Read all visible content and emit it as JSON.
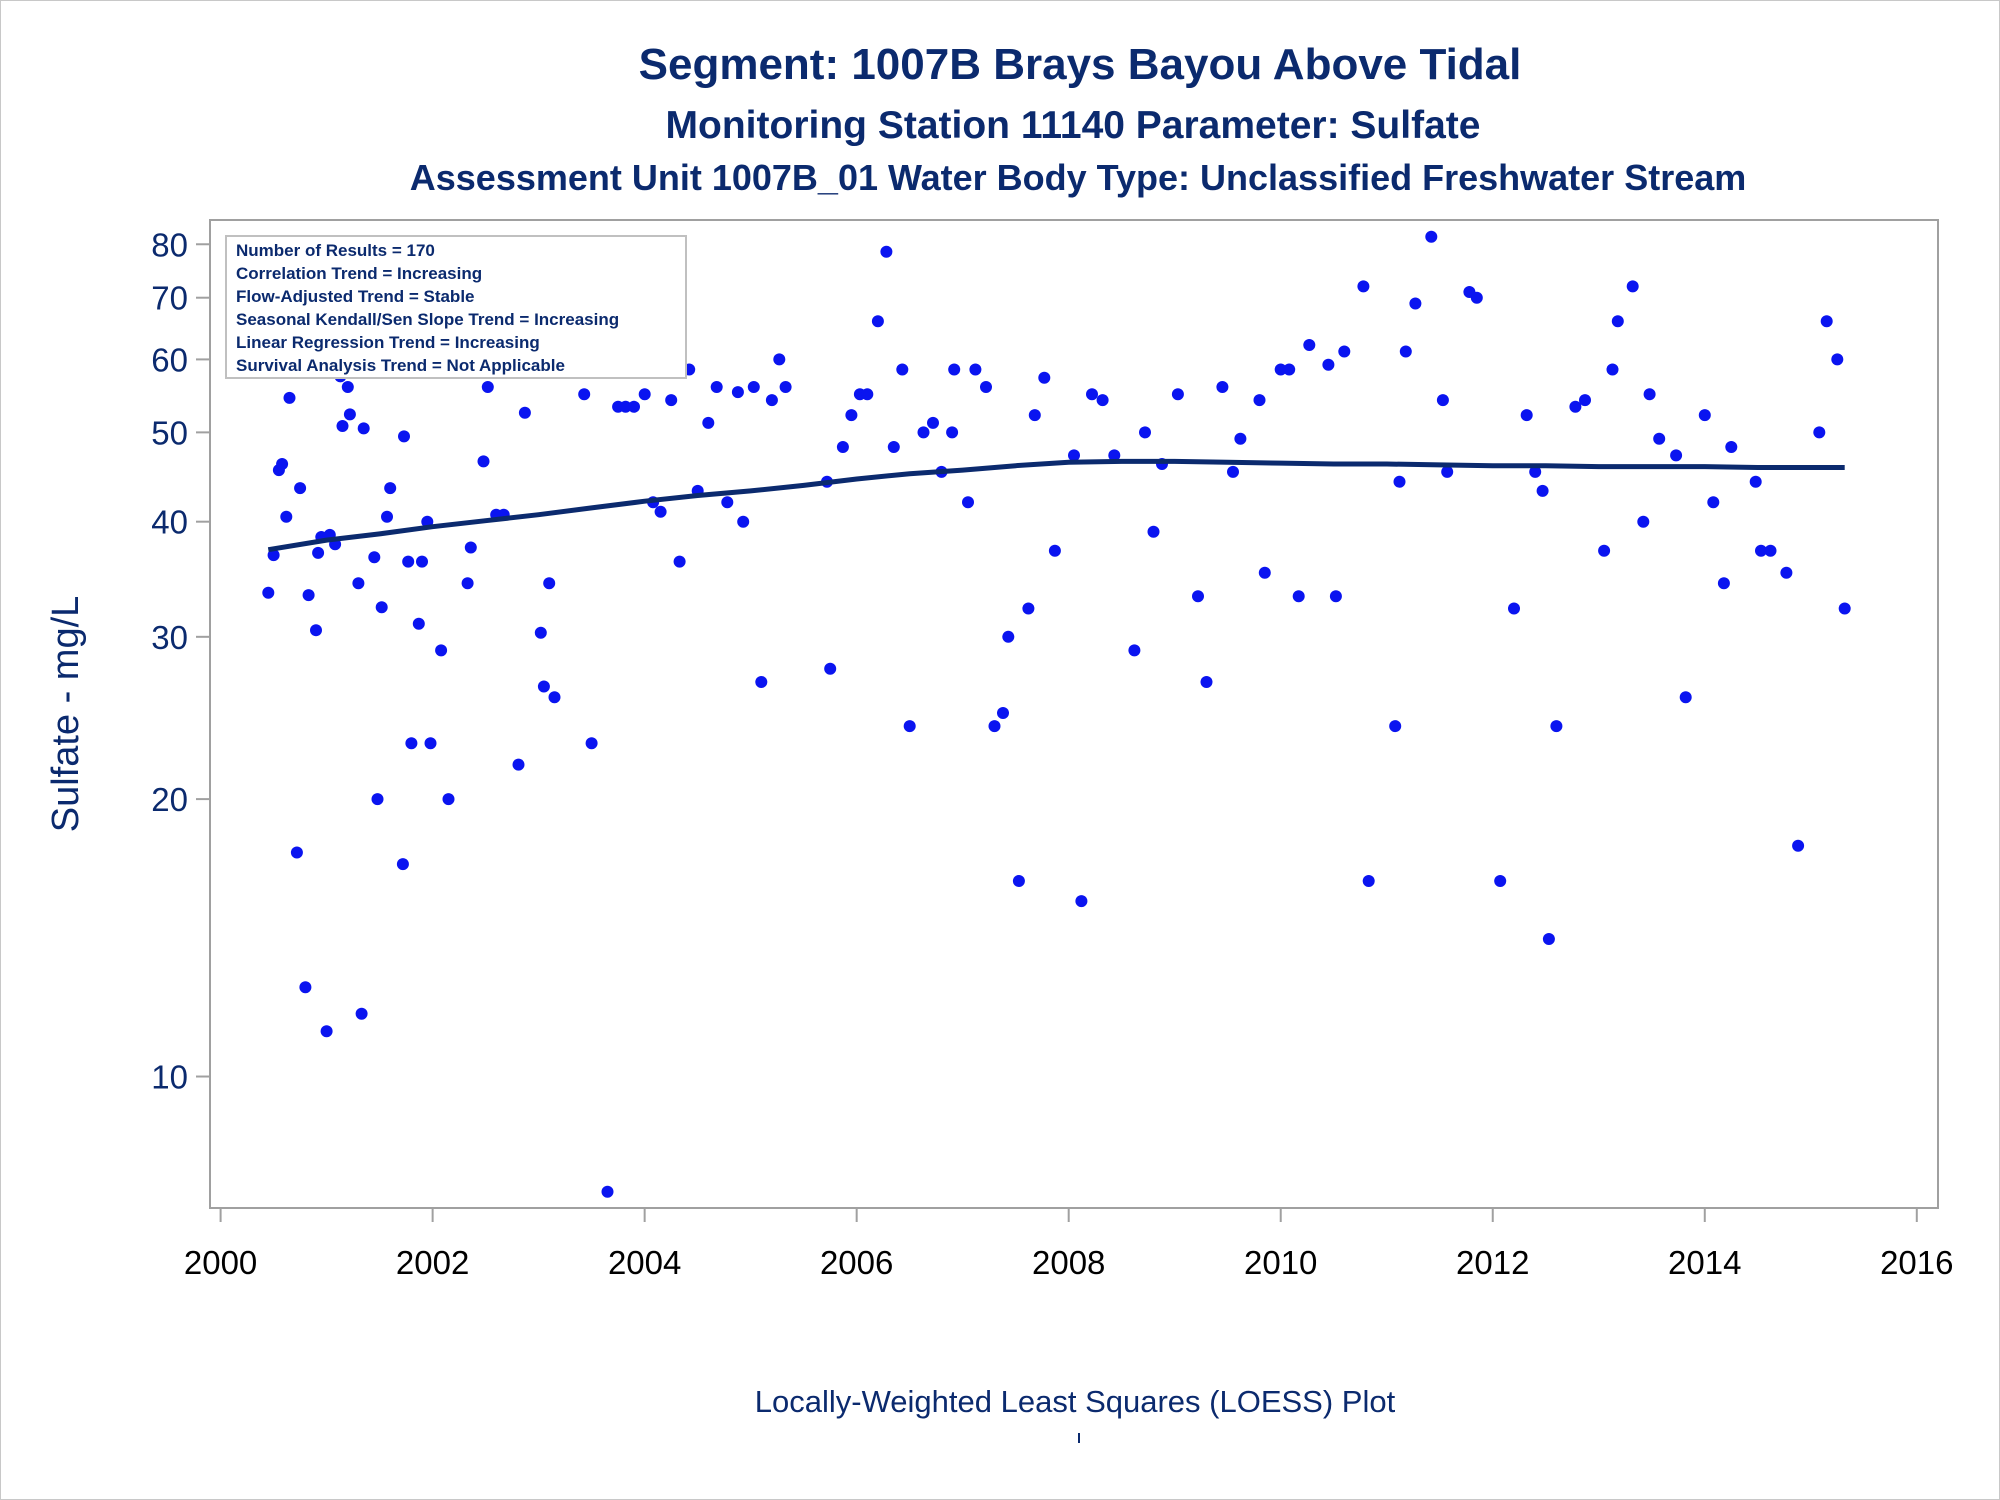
{
  "chart_data": {
    "type": "scatter",
    "title": "Segment: 1007B  Brays Bayou Above Tidal",
    "subtitle": "Monitoring Station 11140 Parameter: Sulfate",
    "subtitle2": "Assessment Unit 1007B_01   Water Body Type: Unclassified Freshwater Stream",
    "ylabel": "Sulfate - mg/L",
    "footnote": "Locally-Weighted Least Squares (LOESS) Plot",
    "yscale": "log",
    "xlim": [
      1999.9,
      2016.2
    ],
    "ylim": [
      7.2,
      85
    ],
    "x_ticks": [
      "2000",
      "2002",
      "2004",
      "2006",
      "2008",
      "2010",
      "2012",
      "2014",
      "2016"
    ],
    "y_ticks": [
      "10",
      "20",
      "30",
      "40",
      "50",
      "60",
      "70",
      "80"
    ],
    "stats": [
      "Number of Results = 170",
      "Correlation Trend = Increasing",
      "Flow-Adjusted Trend = Stable",
      "Seasonal Kendall/Sen Slope Trend = Increasing",
      "Linear Regression Trend = Increasing",
      "Survival Analysis Trend = Not Applicable"
    ],
    "legend_position": "top-left",
    "grid": false,
    "point_color": "#0a14f0",
    "line_color": "#0b2a6e",
    "points": [
      [
        2000.45,
        33.5
      ],
      [
        2000.5,
        36.8
      ],
      [
        2000.55,
        45.5
      ],
      [
        2000.58,
        46.2
      ],
      [
        2000.62,
        40.5
      ],
      [
        2000.65,
        54.5
      ],
      [
        2000.72,
        17.5
      ],
      [
        2000.75,
        43.5
      ],
      [
        2000.8,
        12.5
      ],
      [
        2000.83,
        33.3
      ],
      [
        2000.9,
        30.5
      ],
      [
        2000.92,
        37
      ],
      [
        2000.95,
        38.5
      ],
      [
        2001.0,
        11.2
      ],
      [
        2001.03,
        38.7
      ],
      [
        2001.08,
        37.8
      ],
      [
        2001.13,
        57.5
      ],
      [
        2001.15,
        50.8
      ],
      [
        2001.2,
        56
      ],
      [
        2001.22,
        52.3
      ],
      [
        2001.28,
        58.5
      ],
      [
        2001.3,
        34.3
      ],
      [
        2001.33,
        11.7
      ],
      [
        2001.35,
        50.5
      ],
      [
        2001.45,
        36.6
      ],
      [
        2001.48,
        20
      ],
      [
        2001.52,
        32.3
      ],
      [
        2001.57,
        40.5
      ],
      [
        2001.6,
        43.5
      ],
      [
        2001.72,
        17
      ],
      [
        2001.73,
        49.5
      ],
      [
        2001.77,
        36.2
      ],
      [
        2001.8,
        23
      ],
      [
        2001.87,
        31
      ],
      [
        2001.9,
        36.2
      ],
      [
        2001.95,
        40
      ],
      [
        2001.98,
        23
      ],
      [
        2002.08,
        29
      ],
      [
        2002.15,
        20
      ],
      [
        2002.25,
        60
      ],
      [
        2002.33,
        34.3
      ],
      [
        2002.36,
        37.5
      ],
      [
        2002.48,
        46.5
      ],
      [
        2002.52,
        56
      ],
      [
        2002.6,
        40.7
      ],
      [
        2002.67,
        40.7
      ],
      [
        2002.81,
        21.8
      ],
      [
        2002.87,
        52.5
      ],
      [
        2003.02,
        30.3
      ],
      [
        2003.05,
        26.5
      ],
      [
        2003.1,
        34.3
      ],
      [
        2003.15,
        25.8
      ],
      [
        2003.25,
        72
      ],
      [
        2003.35,
        62.2
      ],
      [
        2003.43,
        55
      ],
      [
        2003.5,
        23
      ],
      [
        2003.65,
        7.5
      ],
      [
        2003.75,
        53.3
      ],
      [
        2003.82,
        53.3
      ],
      [
        2003.9,
        53.3
      ],
      [
        2004.0,
        55
      ],
      [
        2004.08,
        42
      ],
      [
        2004.15,
        41
      ],
      [
        2004.25,
        54.2
      ],
      [
        2004.33,
        36.2
      ],
      [
        2004.42,
        58.5
      ],
      [
        2004.5,
        43.2
      ],
      [
        2004.6,
        51.2
      ],
      [
        2004.68,
        56
      ],
      [
        2004.78,
        42
      ],
      [
        2004.88,
        55.3
      ],
      [
        2004.93,
        40
      ],
      [
        2005.03,
        56
      ],
      [
        2005.1,
        26.8
      ],
      [
        2005.2,
        54.2
      ],
      [
        2005.27,
        60
      ],
      [
        2005.33,
        56
      ],
      [
        2005.72,
        44.2
      ],
      [
        2005.75,
        27.7
      ],
      [
        2005.87,
        48.2
      ],
      [
        2005.95,
        52.2
      ],
      [
        2006.03,
        55
      ],
      [
        2006.1,
        55
      ],
      [
        2006.2,
        66
      ],
      [
        2006.28,
        78.5
      ],
      [
        2006.35,
        48.2
      ],
      [
        2006.43,
        58.5
      ],
      [
        2006.5,
        24
      ],
      [
        2006.63,
        50
      ],
      [
        2006.72,
        51.2
      ],
      [
        2006.8,
        45.3
      ],
      [
        2006.9,
        50
      ],
      [
        2006.92,
        58.5
      ],
      [
        2007.05,
        42
      ],
      [
        2007.12,
        58.5
      ],
      [
        2007.22,
        56
      ],
      [
        2007.3,
        24
      ],
      [
        2007.38,
        24.8
      ],
      [
        2007.43,
        30
      ],
      [
        2007.53,
        16.3
      ],
      [
        2007.62,
        32.2
      ],
      [
        2007.68,
        52.2
      ],
      [
        2007.77,
        57.3
      ],
      [
        2007.87,
        37.2
      ],
      [
        2008.05,
        47.2
      ],
      [
        2008.12,
        15.5
      ],
      [
        2008.22,
        55
      ],
      [
        2008.32,
        54.2
      ],
      [
        2008.43,
        47.2
      ],
      [
        2008.62,
        29
      ],
      [
        2008.72,
        50
      ],
      [
        2008.8,
        39
      ],
      [
        2008.88,
        46.2
      ],
      [
        2009.03,
        55
      ],
      [
        2009.22,
        33.2
      ],
      [
        2009.3,
        26.8
      ],
      [
        2009.45,
        56
      ],
      [
        2009.55,
        45.3
      ],
      [
        2009.62,
        49.2
      ],
      [
        2009.8,
        54.2
      ],
      [
        2009.85,
        35.2
      ],
      [
        2010.0,
        58.5
      ],
      [
        2010.08,
        58.5
      ],
      [
        2010.17,
        33.2
      ],
      [
        2010.27,
        62.2
      ],
      [
        2010.45,
        59.2
      ],
      [
        2010.52,
        33.2
      ],
      [
        2010.6,
        61.2
      ],
      [
        2010.78,
        72
      ],
      [
        2010.83,
        16.3
      ],
      [
        2011.08,
        24
      ],
      [
        2011.12,
        44.2
      ],
      [
        2011.18,
        61.2
      ],
      [
        2011.27,
        69
      ],
      [
        2011.42,
        81.5
      ],
      [
        2011.53,
        54.2
      ],
      [
        2011.57,
        45.3
      ],
      [
        2011.78,
        71
      ],
      [
        2011.85,
        70
      ],
      [
        2012.07,
        16.3
      ],
      [
        2012.2,
        32.2
      ],
      [
        2012.32,
        52.2
      ],
      [
        2012.4,
        45.3
      ],
      [
        2012.47,
        43.2
      ],
      [
        2012.53,
        14.1
      ],
      [
        2012.6,
        24
      ],
      [
        2012.78,
        53.3
      ],
      [
        2012.87,
        54.2
      ],
      [
        2013.05,
        37.2
      ],
      [
        2013.13,
        58.5
      ],
      [
        2013.18,
        66
      ],
      [
        2013.32,
        72
      ],
      [
        2013.42,
        40
      ],
      [
        2013.48,
        55
      ],
      [
        2013.57,
        49.2
      ],
      [
        2013.73,
        47.2
      ],
      [
        2013.82,
        25.8
      ],
      [
        2014.0,
        52.2
      ],
      [
        2014.08,
        42
      ],
      [
        2014.18,
        34.3
      ],
      [
        2014.25,
        48.2
      ],
      [
        2014.48,
        44.2
      ],
      [
        2014.53,
        37.2
      ],
      [
        2014.62,
        37.2
      ],
      [
        2014.77,
        35.2
      ],
      [
        2014.88,
        17.8
      ],
      [
        2015.08,
        50
      ],
      [
        2015.15,
        66
      ],
      [
        2015.25,
        60
      ],
      [
        2015.32,
        32.2
      ]
    ],
    "loess": [
      [
        2000.45,
        37.3
      ],
      [
        2001.0,
        38.2
      ],
      [
        2001.5,
        38.8
      ],
      [
        2002.0,
        39.5
      ],
      [
        2002.5,
        40.1
      ],
      [
        2003.0,
        40.7
      ],
      [
        2003.5,
        41.4
      ],
      [
        2004.0,
        42.1
      ],
      [
        2004.5,
        42.7
      ],
      [
        2005.0,
        43.2
      ],
      [
        2005.5,
        43.8
      ],
      [
        2006.0,
        44.5
      ],
      [
        2006.5,
        45.1
      ],
      [
        2007.0,
        45.5
      ],
      [
        2007.5,
        46.0
      ],
      [
        2008.0,
        46.4
      ],
      [
        2008.5,
        46.5
      ],
      [
        2009.0,
        46.5
      ],
      [
        2009.5,
        46.4
      ],
      [
        2010.0,
        46.3
      ],
      [
        2010.5,
        46.2
      ],
      [
        2011.0,
        46.2
      ],
      [
        2011.5,
        46.1
      ],
      [
        2012.0,
        46.0
      ],
      [
        2012.5,
        46.0
      ],
      [
        2013.0,
        45.9
      ],
      [
        2013.5,
        45.9
      ],
      [
        2014.0,
        45.9
      ],
      [
        2014.5,
        45.8
      ],
      [
        2015.0,
        45.8
      ],
      [
        2015.32,
        45.8
      ]
    ]
  }
}
